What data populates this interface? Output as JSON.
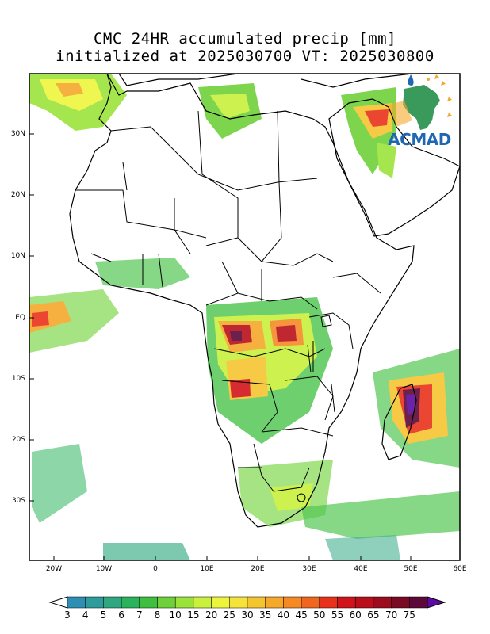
{
  "title_line1": "CMC 24HR accumulated precip [mm]",
  "title_line2": "initialized at 2025030700 VT: 2025030800",
  "logo_text": "ACMAD",
  "lat_labels": [
    "30N",
    "20N",
    "10N",
    "EQ",
    "10S",
    "20S",
    "30S"
  ],
  "lon_labels": [
    "20W",
    "10W",
    "0",
    "10E",
    "20E",
    "30E",
    "40E",
    "50E",
    "60E"
  ],
  "colorbar": {
    "labels": [
      "3",
      "4",
      "5",
      "6",
      "7",
      "8",
      "10",
      "15",
      "20",
      "25",
      "30",
      "35",
      "40",
      "45",
      "50",
      "55",
      "60",
      "65",
      "70",
      "75"
    ],
    "colors": [
      "#2f8fb3",
      "#2f9c9c",
      "#2fa882",
      "#2bb35c",
      "#3fbf3f",
      "#6fd13a",
      "#9be33a",
      "#c8f03c",
      "#ecf53c",
      "#f5e23a",
      "#f5c52f",
      "#f5a82a",
      "#f58a25",
      "#f0661f",
      "#e8311a",
      "#d1131a",
      "#b80f1a",
      "#9c0c1e",
      "#7a0a24",
      "#5c0838",
      "#5c0aa0"
    ]
  }
}
